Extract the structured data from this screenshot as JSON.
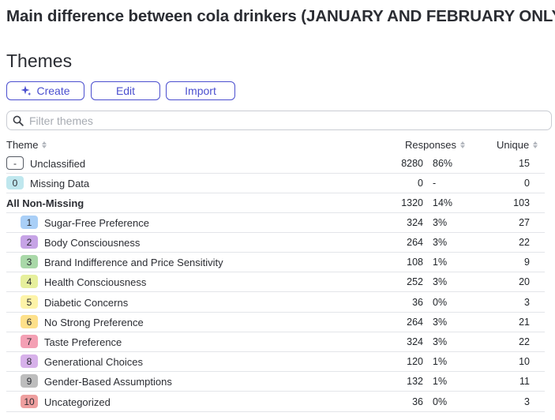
{
  "page": {
    "title": "Main difference between cola drinkers (JANUARY AND FEBRUARY ONLY)",
    "section_title": "Themes"
  },
  "toolbar": {
    "create_label": "Create",
    "edit_label": "Edit",
    "import_label": "Import"
  },
  "filter": {
    "placeholder": "Filter themes",
    "value": ""
  },
  "table": {
    "headers": {
      "theme": "Theme",
      "responses": "Responses",
      "unique": "Unique"
    },
    "rows": [
      {
        "badge": "-",
        "badge_color": "#ffffff",
        "badge_border": "#555a63",
        "label": "Unclassified",
        "count": "8280",
        "pct": "86%",
        "unique": "15",
        "indent": false,
        "bold": false
      },
      {
        "badge": "0",
        "badge_color": "#bfe7ee",
        "label": "Missing Data",
        "count": "0",
        "pct": "-",
        "unique": "0",
        "indent": false,
        "bold": false
      },
      {
        "badge": "",
        "label": "All Non-Missing",
        "count": "1320",
        "pct": "14%",
        "unique": "103",
        "indent": false,
        "bold": true
      },
      {
        "badge": "1",
        "badge_color": "#a9cff7",
        "label": "Sugar-Free Preference",
        "count": "324",
        "pct": "3%",
        "unique": "27",
        "indent": true,
        "bold": false
      },
      {
        "badge": "2",
        "badge_color": "#c6a3e6",
        "label": "Body Consciousness",
        "count": "264",
        "pct": "3%",
        "unique": "22",
        "indent": true,
        "bold": false
      },
      {
        "badge": "3",
        "badge_color": "#a9d8a8",
        "label": "Brand Indifference and Price Sensitivity",
        "count": "108",
        "pct": "1%",
        "unique": "9",
        "indent": true,
        "bold": false
      },
      {
        "badge": "4",
        "badge_color": "#e6ef9c",
        "label": "Health Consciousness",
        "count": "252",
        "pct": "3%",
        "unique": "20",
        "indent": true,
        "bold": false
      },
      {
        "badge": "5",
        "badge_color": "#fdf3a8",
        "label": "Diabetic Concerns",
        "count": "36",
        "pct": "0%",
        "unique": "3",
        "indent": true,
        "bold": false
      },
      {
        "badge": "6",
        "badge_color": "#fde08a",
        "label": "No Strong Preference",
        "count": "264",
        "pct": "3%",
        "unique": "21",
        "indent": true,
        "bold": false
      },
      {
        "badge": "7",
        "badge_color": "#f4a0b4",
        "label": "Taste Preference",
        "count": "324",
        "pct": "3%",
        "unique": "22",
        "indent": true,
        "bold": false
      },
      {
        "badge": "8",
        "badge_color": "#d7b1ea",
        "label": "Generational Choices",
        "count": "120",
        "pct": "1%",
        "unique": "10",
        "indent": true,
        "bold": false
      },
      {
        "badge": "9",
        "badge_color": "#bdbdbd",
        "label": "Gender-Based Assumptions",
        "count": "132",
        "pct": "1%",
        "unique": "11",
        "indent": true,
        "bold": false
      },
      {
        "badge": "10",
        "badge_color": "#ee9f9f",
        "label": "Uncategorized",
        "count": "36",
        "pct": "0%",
        "unique": "3",
        "indent": true,
        "bold": false
      }
    ]
  },
  "icons": {
    "create": "sparkle-icon",
    "filter": "search-icon",
    "sort": "sort-icon"
  },
  "colors": {
    "accent": "#4b4fcf"
  }
}
